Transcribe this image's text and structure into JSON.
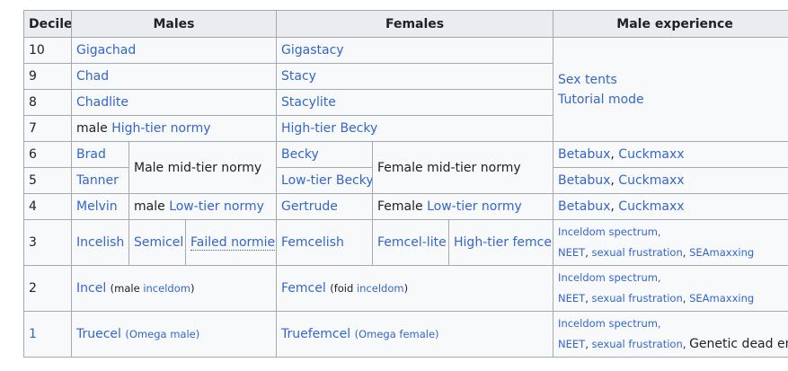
{
  "headers": {
    "decile": "Decile",
    "males": "Males",
    "females": "Females",
    "experience": "Male experience"
  },
  "rows": {
    "r10": {
      "decile": "10",
      "male": "Gigachad",
      "female": "Gigastacy"
    },
    "r9": {
      "decile": "9",
      "male": "Chad",
      "female": "Stacy"
    },
    "r8": {
      "decile": "8",
      "male": "Chadlite",
      "female": "Stacylite"
    },
    "r7": {
      "decile": "7",
      "male_prefix": "male",
      "male": "High-tier normy",
      "female": "High-tier Becky"
    },
    "r6": {
      "decile": "6",
      "male": "Brad",
      "female": "Becky",
      "exp_a": "Betabux",
      "exp_sep": ",",
      "exp_b": "Cuckmaxx"
    },
    "r5": {
      "decile": "5",
      "male": "Tanner",
      "female": "Low-tier Becky",
      "exp_a": "Betabux",
      "exp_sep": ",",
      "exp_b": "Cuckmaxx"
    },
    "r4": {
      "decile": "4",
      "male": "Melvin",
      "male_group_prefix": "male",
      "male_group": "Low-tier normy",
      "female": "Gertrude",
      "female_group_prefix": "Female",
      "female_group": "Low-tier normy",
      "exp_a": "Betabux",
      "exp_sep": ",",
      "exp_b": "Cuckmaxx"
    },
    "r3": {
      "decile": "3",
      "male_a": "Incelish",
      "male_b": "Semicel",
      "male_c": "Failed normie",
      "female_a": "Femcelish",
      "female_b": "Femcel-lite",
      "female_c": "High-tier femcel"
    },
    "r2": {
      "decile": "2",
      "male": "Incel",
      "male_note_prefix": "(male",
      "male_note_link": "inceldom",
      "male_note_suffix": ")",
      "female": "Femcel",
      "female_note_prefix": "(foid",
      "female_note_link": "inceldom",
      "female_note_suffix": ")"
    },
    "r1": {
      "decile": "1",
      "male": "Truecel",
      "male_note": "(Omega male)",
      "female": "Truefemcel",
      "female_note": "(Omega female)"
    }
  },
  "groups": {
    "male_mid": "Male mid-tier normy",
    "female_mid": "Female mid-tier normy"
  },
  "experience_top": {
    "line1": "Sex tents",
    "line2": "Tutorial mode"
  },
  "experience_spectrum": {
    "line1": "Inceldom spectrum,",
    "neet": "NEET",
    "comma1": ",",
    "frustration": "sexual frustration",
    "comma2": ",",
    "seamaxxing": "SEAmaxxing",
    "genetic": "Genetic dead end"
  },
  "colors": {
    "link": "#3366cc",
    "header_bg": "#eaecf0",
    "cell_bg": "#f8f9fa",
    "border": "#a2a9b1",
    "text": "#202122"
  }
}
